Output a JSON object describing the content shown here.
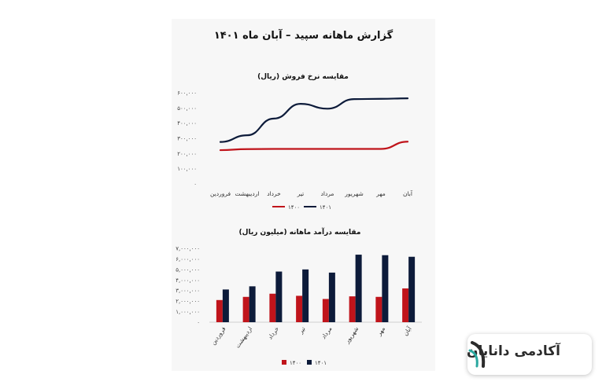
{
  "report": {
    "title": "گزارش ماهانه سپید – آبان ماه ۱۴۰۱"
  },
  "logo": {
    "text": "آکادمی دانایان"
  },
  "colors": {
    "series_1400": "#c0141b",
    "series_1401": "#0d1b3a",
    "panel_bg": "#f7f7f7"
  },
  "chart_data": [
    {
      "type": "line",
      "title": "مقایسه نرخ فروش (ریال)",
      "categories": [
        "فروردین",
        "اردیبهشت",
        "خرداد",
        "تیر",
        "مرداد",
        "شهریور",
        "مهر",
        "آبان"
      ],
      "series": [
        {
          "name": "۱۴۰۰",
          "values": [
            222000,
            229000,
            230000,
            230000,
            230000,
            230000,
            230000,
            278000
          ]
        },
        {
          "name": "۱۴۰۱",
          "values": [
            276000,
            320000,
            430000,
            527000,
            495000,
            558000,
            560000,
            563000
          ]
        }
      ],
      "ylim": [
        0,
        600000
      ],
      "yticks": [
        0,
        100000,
        200000,
        300000,
        400000,
        500000,
        600000
      ],
      "ytick_labels": [
        "۰",
        "۱۰۰,۰۰۰",
        "۲۰۰,۰۰۰",
        "۳۰۰,۰۰۰",
        "۴۰۰,۰۰۰",
        "۵۰۰,۰۰۰",
        "۶۰۰,۰۰۰"
      ],
      "legend": "bottom",
      "grid": false
    },
    {
      "type": "bar",
      "title": "مقایسه درآمد ماهانه (میلیون ریال)",
      "categories": [
        "فروردین",
        "اردیبهشت",
        "خرداد",
        "تیر",
        "مرداد",
        "شهریور",
        "مهر",
        "آبان"
      ],
      "series": [
        {
          "name": "۱۴۰۰",
          "values": [
            2100000,
            2400000,
            2700000,
            2500000,
            2200000,
            2450000,
            2400000,
            3200000
          ]
        },
        {
          "name": "۱۴۰۱",
          "values": [
            3100000,
            3400000,
            4800000,
            5000000,
            4700000,
            6400000,
            6350000,
            6200000
          ]
        }
      ],
      "ylim": [
        0,
        7000000
      ],
      "yticks": [
        0,
        1000000,
        2000000,
        3000000,
        4000000,
        5000000,
        6000000,
        7000000
      ],
      "ytick_labels": [
        "۰",
        "۱,۰۰۰,۰۰۰",
        "۲,۰۰۰,۰۰۰",
        "۳,۰۰۰,۰۰۰",
        "۴,۰۰۰,۰۰۰",
        "۵,۰۰۰,۰۰۰",
        "۶,۰۰۰,۰۰۰",
        "۷,۰۰۰,۰۰۰"
      ],
      "legend": "bottom",
      "grid": false
    }
  ]
}
